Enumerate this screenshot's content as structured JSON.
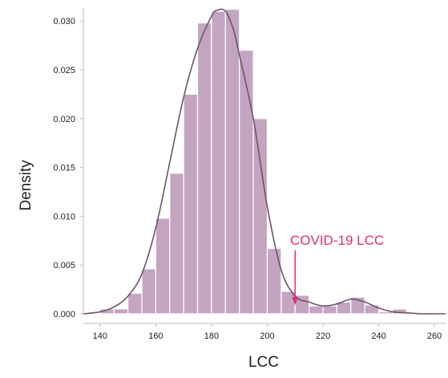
{
  "chart_data": {
    "type": "bar",
    "subtype": "histogram-with-density",
    "xlabel": "LCC",
    "ylabel": "Density",
    "xlim": [
      134,
      264
    ],
    "ylim": [
      0,
      0.031
    ],
    "x_ticks": [
      140,
      160,
      180,
      200,
      220,
      240,
      260
    ],
    "y_ticks": [
      "0.000",
      "0.005",
      "0.010",
      "0.015",
      "0.020",
      "0.025",
      "0.030"
    ],
    "bin_width": 5,
    "bins": [
      {
        "x0": 140,
        "x1": 145,
        "density": 0.0005
      },
      {
        "x0": 145,
        "x1": 150,
        "density": 0.0005
      },
      {
        "x0": 150,
        "x1": 155,
        "density": 0.0021
      },
      {
        "x0": 155,
        "x1": 160,
        "density": 0.0046
      },
      {
        "x0": 160,
        "x1": 165,
        "density": 0.0098
      },
      {
        "x0": 165,
        "x1": 170,
        "density": 0.0144
      },
      {
        "x0": 170,
        "x1": 175,
        "density": 0.0225
      },
      {
        "x0": 175,
        "x1": 180,
        "density": 0.0298
      },
      {
        "x0": 180,
        "x1": 185,
        "density": 0.031
      },
      {
        "x0": 185,
        "x1": 190,
        "density": 0.0312
      },
      {
        "x0": 190,
        "x1": 195,
        "density": 0.027
      },
      {
        "x0": 195,
        "x1": 200,
        "density": 0.02
      },
      {
        "x0": 200,
        "x1": 205,
        "density": 0.0067
      },
      {
        "x0": 205,
        "x1": 210,
        "density": 0.0023
      },
      {
        "x0": 210,
        "x1": 215,
        "density": 0.0019
      },
      {
        "x0": 215,
        "x1": 220,
        "density": 0.0008
      },
      {
        "x0": 220,
        "x1": 225,
        "density": 0.0008
      },
      {
        "x0": 225,
        "x1": 230,
        "density": 0.0012
      },
      {
        "x0": 230,
        "x1": 235,
        "density": 0.0017
      },
      {
        "x0": 235,
        "x1": 240,
        "density": 0.0009
      },
      {
        "x0": 240,
        "x1": 245,
        "density": 0.0002
      },
      {
        "x0": 245,
        "x1": 250,
        "density": 0.0005
      }
    ],
    "density_curve": {
      "x": [
        134,
        140,
        145,
        150,
        155,
        160,
        165,
        170,
        175,
        180,
        182,
        185,
        188,
        190,
        195,
        200,
        205,
        210,
        215,
        220,
        225,
        230,
        235,
        240,
        245,
        250,
        255,
        260,
        264
      ],
      "y": [
        0.0,
        0.0002,
        0.0007,
        0.0018,
        0.0041,
        0.0088,
        0.0155,
        0.0222,
        0.0272,
        0.0305,
        0.0311,
        0.031,
        0.029,
        0.0265,
        0.02,
        0.011,
        0.0045,
        0.0018,
        0.0012,
        0.0008,
        0.001,
        0.0015,
        0.0012,
        0.0006,
        0.0002,
        0.0001,
        0.0,
        0.0,
        0.0
      ]
    },
    "annotation": {
      "text": "COVID-19 LCC",
      "x": 210,
      "color": "#e0306e"
    },
    "colors": {
      "bar_fill": "#c3a5c2",
      "bar_edge": "#ffffff",
      "curve": "#6e5468",
      "axis": "#bbbbbb"
    },
    "grid": false
  }
}
